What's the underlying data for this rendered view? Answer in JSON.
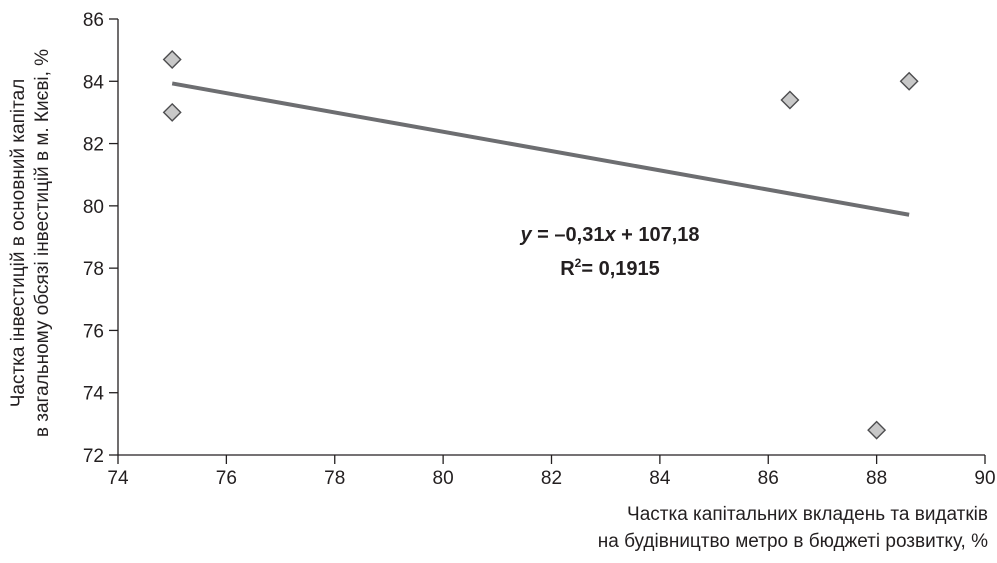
{
  "chart_data": {
    "type": "scatter",
    "title": "",
    "xlabel_lines": [
      "Частка капітальних вкладень та видатків",
      "на будівництво метро в бюджеті розвитку, %"
    ],
    "ylabel_lines": [
      "Частка інвестицій в основний капітал",
      "в загальному обсязі інвестицій в м. Києві, %"
    ],
    "xlim": [
      74,
      90
    ],
    "ylim": [
      72,
      86
    ],
    "x_ticks": [
      "74",
      "76",
      "78",
      "80",
      "82",
      "84",
      "86",
      "88",
      "90"
    ],
    "y_ticks": [
      "72",
      "74",
      "76",
      "78",
      "80",
      "82",
      "84",
      "86"
    ],
    "grid": false,
    "series": [
      {
        "points": [
          {
            "x": 75.0,
            "y": 84.7
          },
          {
            "x": 75.0,
            "y": 83.0
          },
          {
            "x": 86.4,
            "y": 83.4
          },
          {
            "x": 88.6,
            "y": 84.0
          },
          {
            "x": 88.0,
            "y": 72.8
          }
        ]
      }
    ],
    "trendline": {
      "slope": -0.31,
      "intercept": 107.18,
      "x_range": [
        75.0,
        88.6
      ],
      "equation_label": "y = –0,31x + 107,18",
      "r2_label": "R² = 0,1915",
      "r2_value": "= 0,1915"
    },
    "colors": {
      "marker_fill": "#c8c8c8",
      "marker_stroke": "#4d4d4f",
      "trendline": "#6d6e71",
      "axis": "#231f20"
    }
  }
}
